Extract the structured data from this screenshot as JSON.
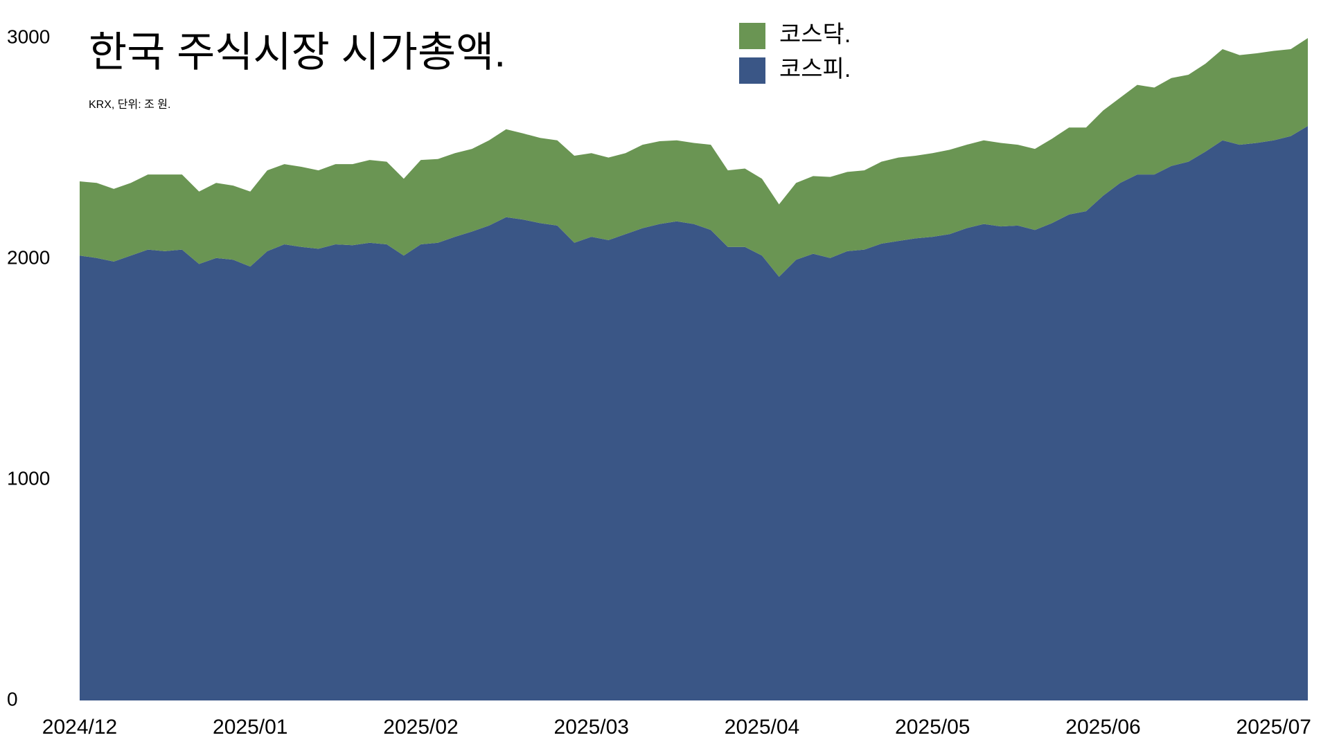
{
  "chart_data": {
    "type": "stacked-area",
    "title": "한국 주식시장 시가총액.",
    "subtitle": "KRX, 단위: 조 원.",
    "categories": [
      "2024/12",
      null,
      null,
      null,
      null,
      null,
      null,
      null,
      null,
      null,
      "2025/01",
      null,
      null,
      null,
      null,
      null,
      null,
      null,
      null,
      null,
      "2025/02",
      null,
      null,
      null,
      null,
      null,
      null,
      null,
      null,
      null,
      "2025/03",
      null,
      null,
      null,
      null,
      null,
      null,
      null,
      null,
      null,
      "2025/04",
      null,
      null,
      null,
      null,
      null,
      null,
      null,
      null,
      null,
      "2025/05",
      null,
      null,
      null,
      null,
      null,
      null,
      null,
      null,
      null,
      "2025/06",
      null,
      null,
      null,
      null,
      null,
      null,
      null,
      null,
      null,
      "2025/07",
      null,
      null
    ],
    "series": [
      {
        "name": "코스피.",
        "color": "#3a5686",
        "values": [
          2015,
          2004,
          1988,
          2015,
          2042,
          2035,
          2042,
          1977,
          2004,
          1996,
          1965,
          2035,
          2066,
          2054,
          2046,
          2066,
          2062,
          2073,
          2066,
          2015,
          2066,
          2073,
          2100,
          2124,
          2151,
          2189,
          2178,
          2162,
          2151,
          2073,
          2100,
          2085,
          2112,
          2139,
          2158,
          2170,
          2158,
          2131,
          2054,
          2054,
          2015,
          1919,
          1996,
          2023,
          2004,
          2035,
          2042,
          2069,
          2081,
          2093,
          2100,
          2112,
          2139,
          2158,
          2147,
          2151,
          2131,
          2162,
          2201,
          2216,
          2286,
          2344,
          2382,
          2382,
          2421,
          2440,
          2486,
          2537,
          2517,
          2525,
          2537,
          2556,
          2602
        ]
      },
      {
        "name": "코스닥.",
        "color": "#6a9553",
        "values": [
          336,
          340,
          329,
          329,
          340,
          347,
          340,
          328,
          340,
          336,
          340,
          366,
          363,
          363,
          355,
          363,
          367,
          375,
          374,
          348,
          382,
          379,
          379,
          374,
          386,
          398,
          390,
          386,
          386,
          394,
          379,
          374,
          367,
          378,
          375,
          367,
          367,
          386,
          347,
          355,
          348,
          328,
          348,
          352,
          367,
          359,
          359,
          371,
          378,
          374,
          379,
          382,
          378,
          379,
          378,
          366,
          367,
          382,
          394,
          379,
          386,
          386,
          406,
          394,
          398,
          394,
          398,
          413,
          406,
          406,
          405,
          394,
          398
        ]
      }
    ],
    "ylim": [
      0,
      3000
    ],
    "yticks": [
      0,
      1000,
      2000,
      3000
    ],
    "grid": false
  }
}
